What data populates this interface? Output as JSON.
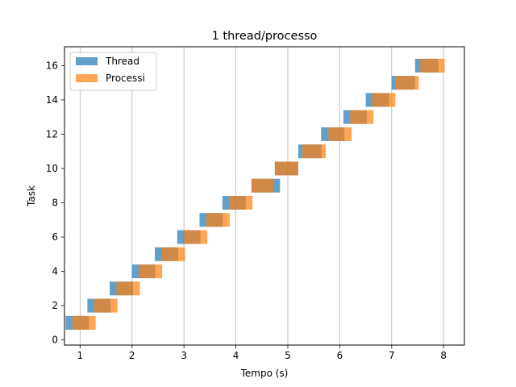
{
  "chart_data": {
    "type": "bar",
    "orientation": "horizontal",
    "title": "1 thread/processo",
    "xlabel": "Tempo (s)",
    "ylabel": "Task",
    "xlim": [
      0.7,
      8.4
    ],
    "ylim": [
      -0.3,
      17.1
    ],
    "xticks": [
      1,
      2,
      3,
      4,
      5,
      6,
      7,
      8
    ],
    "yticks": [
      0,
      2,
      4,
      6,
      8,
      10,
      12,
      14,
      16
    ],
    "grid": "x-major",
    "legend": "top-left",
    "series": [
      {
        "name": "Thread",
        "color": "#1f77b4",
        "bars": [
          {
            "task": 1,
            "start": 0.72,
            "end": 1.17
          },
          {
            "task": 2,
            "start": 1.14,
            "end": 1.59
          },
          {
            "task": 3,
            "start": 1.57,
            "end": 2.02
          },
          {
            "task": 4,
            "start": 2.0,
            "end": 2.45
          },
          {
            "task": 5,
            "start": 2.44,
            "end": 2.89
          },
          {
            "task": 6,
            "start": 2.87,
            "end": 3.32
          },
          {
            "task": 7,
            "start": 3.3,
            "end": 3.75
          },
          {
            "task": 8,
            "start": 3.74,
            "end": 4.19
          },
          {
            "task": 9,
            "start": 4.3,
            "end": 4.85
          },
          {
            "task": 10,
            "start": 4.75,
            "end": 5.2
          },
          {
            "task": 11,
            "start": 5.2,
            "end": 5.65
          },
          {
            "task": 12,
            "start": 5.64,
            "end": 6.09
          },
          {
            "task": 13,
            "start": 6.07,
            "end": 6.52
          },
          {
            "task": 14,
            "start": 6.5,
            "end": 6.95
          },
          {
            "task": 15,
            "start": 7.0,
            "end": 7.45
          },
          {
            "task": 16,
            "start": 7.45,
            "end": 7.9
          }
        ]
      },
      {
        "name": "Processi",
        "color": "#ff7f0e",
        "bars": [
          {
            "task": 1,
            "start": 0.85,
            "end": 1.3
          },
          {
            "task": 2,
            "start": 1.27,
            "end": 1.72
          },
          {
            "task": 3,
            "start": 1.7,
            "end": 2.15
          },
          {
            "task": 4,
            "start": 2.13,
            "end": 2.58
          },
          {
            "task": 5,
            "start": 2.57,
            "end": 3.02
          },
          {
            "task": 6,
            "start": 3.0,
            "end": 3.45
          },
          {
            "task": 7,
            "start": 3.43,
            "end": 3.88
          },
          {
            "task": 8,
            "start": 3.87,
            "end": 4.32
          },
          {
            "task": 9,
            "start": 4.3,
            "end": 4.73
          },
          {
            "task": 10,
            "start": 4.75,
            "end": 5.2
          },
          {
            "task": 11,
            "start": 5.28,
            "end": 5.73
          },
          {
            "task": 12,
            "start": 5.78,
            "end": 6.23
          },
          {
            "task": 13,
            "start": 6.2,
            "end": 6.65
          },
          {
            "task": 14,
            "start": 6.62,
            "end": 7.07
          },
          {
            "task": 15,
            "start": 7.07,
            "end": 7.52
          },
          {
            "task": 16,
            "start": 7.55,
            "end": 8.02
          }
        ]
      }
    ]
  }
}
